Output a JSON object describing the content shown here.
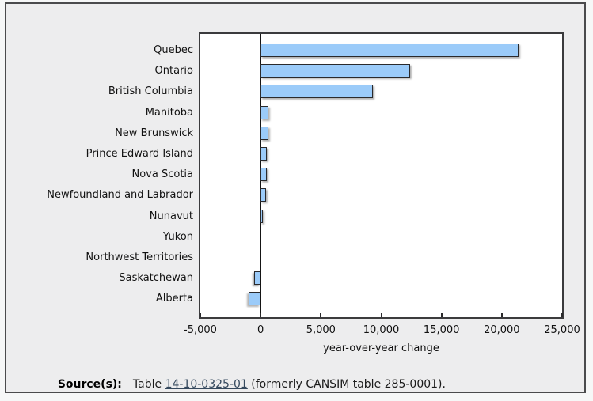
{
  "chart_data": {
    "type": "bar",
    "orientation": "horizontal",
    "categories": [
      "Quebec",
      "Ontario",
      "British Columbia",
      "Manitoba",
      "New Brunswick",
      "Prince Edward Island",
      "Nova Scotia",
      "Newfoundland and Labrador",
      "Nunavut",
      "Yukon",
      "Northwest Territories",
      "Saskatchewan",
      "Alberta"
    ],
    "values": [
      21400,
      12400,
      9300,
      620,
      620,
      490,
      500,
      450,
      180,
      0,
      0,
      -550,
      -1000
    ],
    "title": "",
    "xlabel": "year-over-year change",
    "ylabel": "",
    "xlim": [
      -5000,
      25000
    ],
    "x_ticks": [
      -5000,
      0,
      5000,
      10000,
      15000,
      20000,
      25000
    ],
    "x_tick_labels": [
      "-5,000",
      "0",
      "5,000",
      "10,000",
      "15,000",
      "20,000",
      "25,000"
    ],
    "grid": false,
    "legend": "none",
    "bar_color": "#9bcbf9",
    "bar_border_color": "#2a2a2c",
    "plot_background": "#ffffff",
    "frame_background": "#ededee"
  },
  "source": {
    "label": "Source(s):",
    "text_before_link": "Table ",
    "link_text": "14-10-0325-01",
    "text_after_link": " (formerly CANSIM table 285-0001).",
    "link_color": "#35495e"
  }
}
